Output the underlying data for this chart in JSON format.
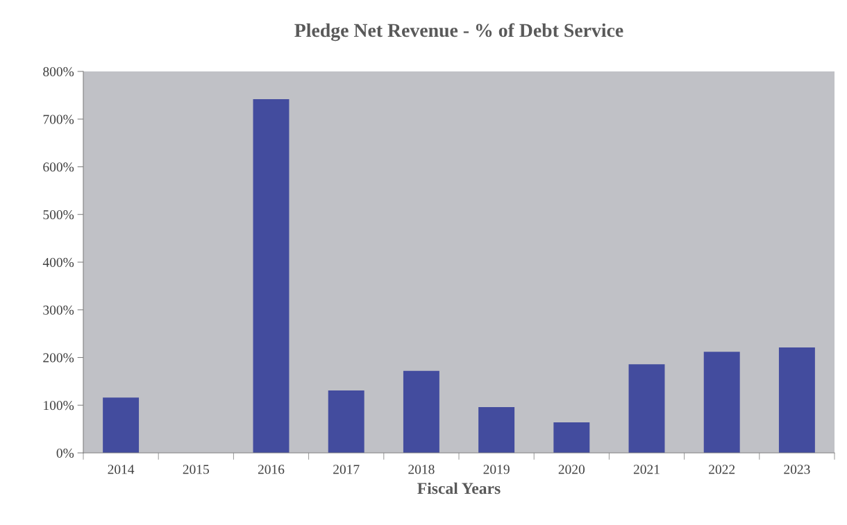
{
  "chart_data": {
    "type": "bar",
    "title": "Pledge Net Revenue - % of Debt Service",
    "xlabel": "Fiscal Years",
    "categories": [
      "2014",
      "2015",
      "2016",
      "2017",
      "2018",
      "2019",
      "2020",
      "2021",
      "2022",
      "2023"
    ],
    "values": [
      116,
      null,
      742,
      131,
      172,
      96,
      64,
      186,
      212,
      221
    ],
    "color": "#434c9e",
    "ylim": [
      0,
      800
    ],
    "yticks": [
      {
        "value": 0,
        "label": "0%"
      },
      {
        "value": 100,
        "label": "100%"
      },
      {
        "value": 200,
        "label": "200%"
      },
      {
        "value": 300,
        "label": "300%"
      },
      {
        "value": 400,
        "label": "400%"
      },
      {
        "value": 500,
        "label": "500%"
      },
      {
        "value": 600,
        "label": "600%"
      },
      {
        "value": 700,
        "label": "700%"
      },
      {
        "value": 800,
        "label": "800%"
      }
    ],
    "grid": false,
    "legend": false
  }
}
